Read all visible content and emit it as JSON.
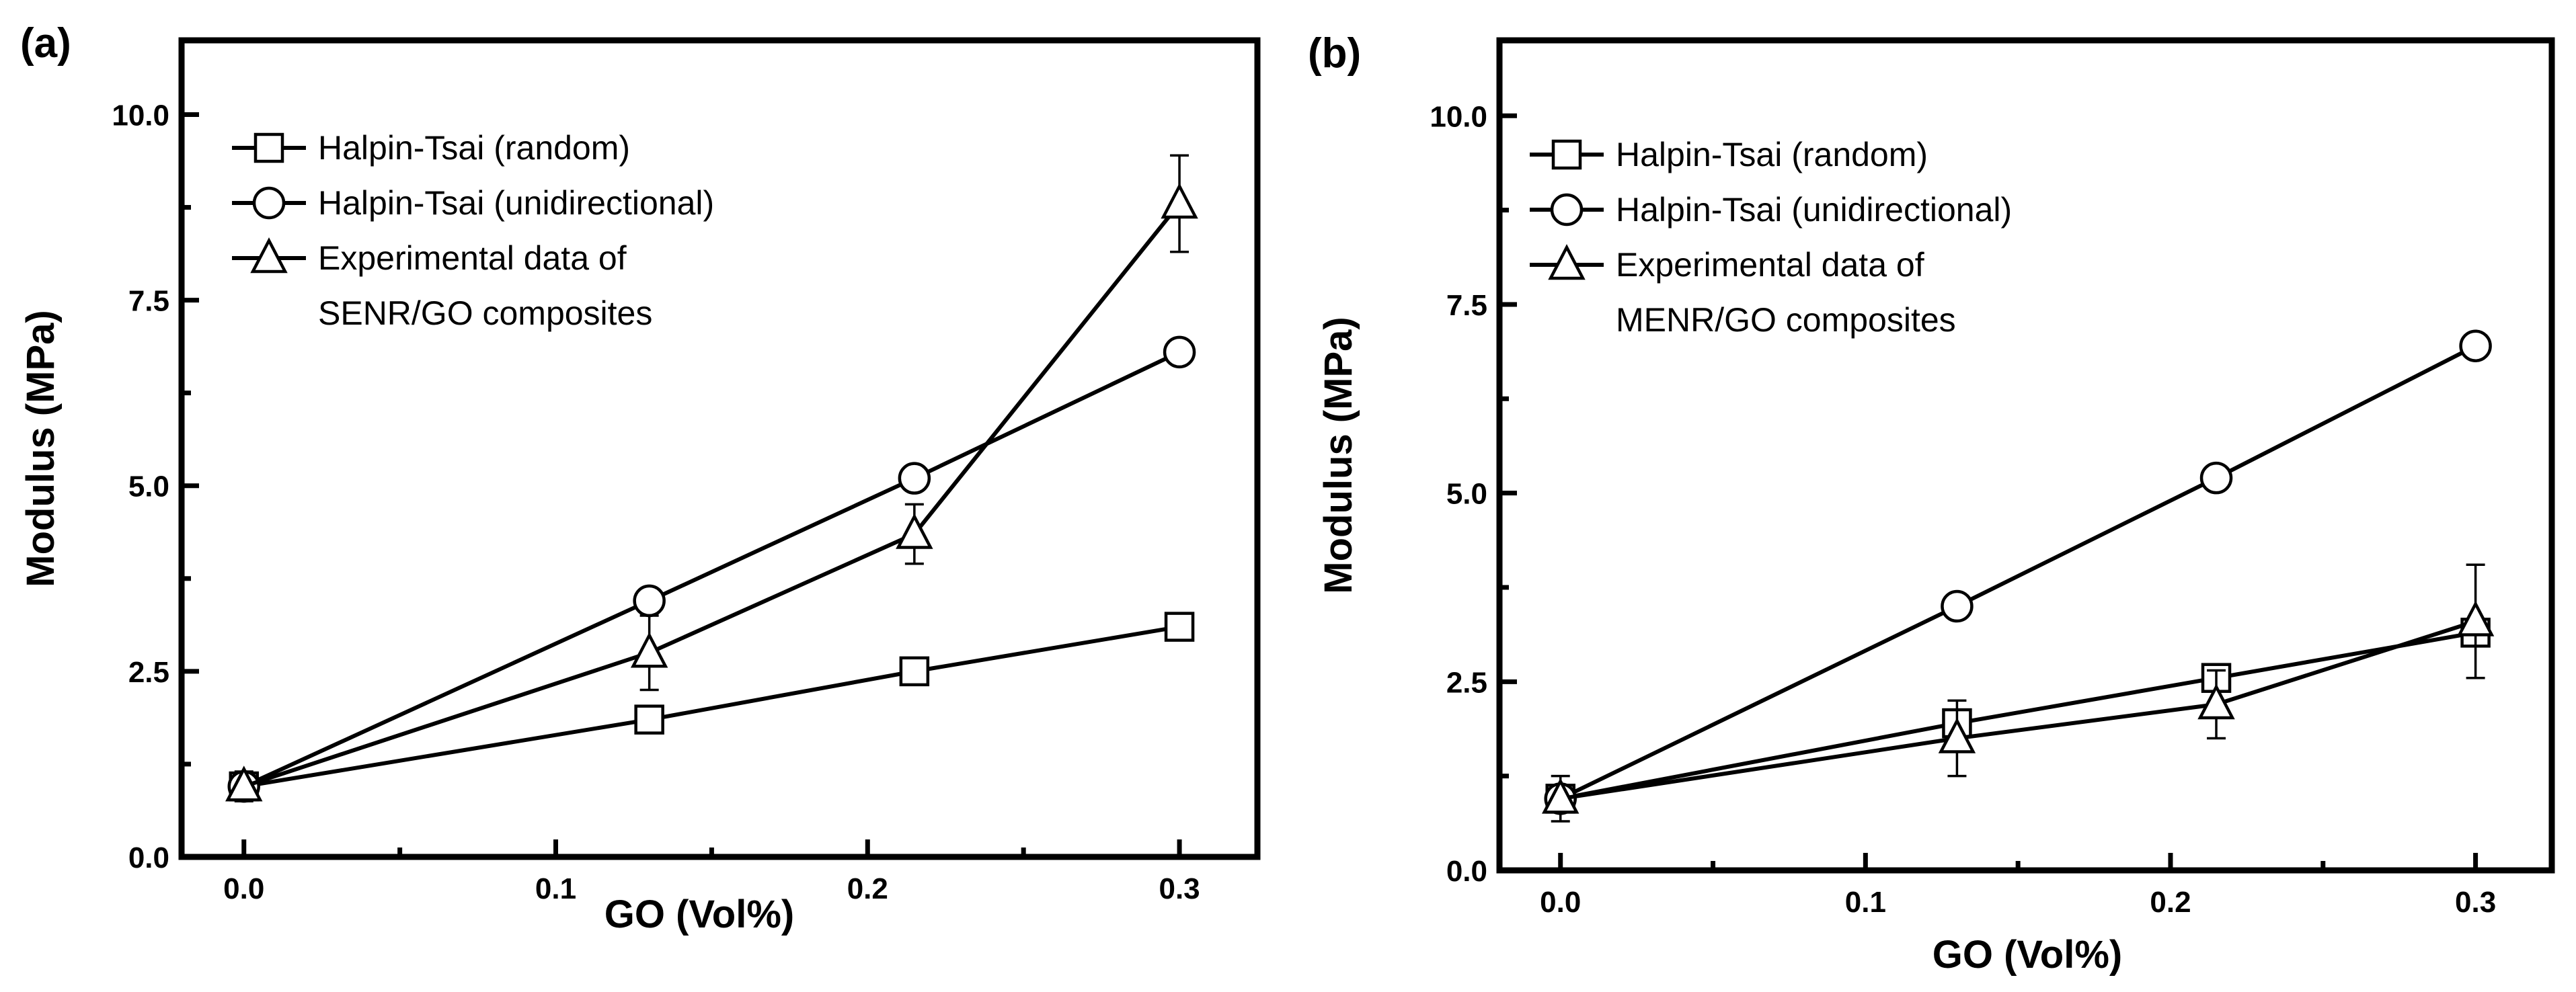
{
  "chart_data": [
    {
      "type": "line",
      "panel_label": "(a)",
      "xlabel": "GO (Vol%)",
      "ylabel": "Modulus (MPa)",
      "xlim": [
        -0.02,
        0.325
      ],
      "ylim": [
        0,
        11
      ],
      "xticks": [
        "0.0",
        "0.1",
        "0.2",
        "0.3"
      ],
      "xtick_values": [
        0,
        0.1,
        0.2,
        0.3
      ],
      "yticks": [
        "0.0",
        "2.5",
        "5.0",
        "7.5",
        "10.0"
      ],
      "ytick_values": [
        0,
        2.5,
        5,
        7.5,
        10
      ],
      "legend_position": "top-left",
      "series": [
        {
          "name": "Halpin-Tsai (random)",
          "marker": "square",
          "x": [
            0,
            0.13,
            0.215,
            0.3
          ],
          "y": [
            0.95,
            1.85,
            2.5,
            3.1
          ]
        },
        {
          "name": "Halpin-Tsai (unidirectional)",
          "marker": "circle",
          "x": [
            0,
            0.13,
            0.215,
            0.3
          ],
          "y": [
            0.95,
            3.45,
            5.1,
            6.8
          ]
        },
        {
          "name": "Experimental data of",
          "name_line2": "SENR/GO composites",
          "marker": "triangle",
          "x": [
            0,
            0.13,
            0.215,
            0.3
          ],
          "y": [
            0.95,
            2.75,
            4.35,
            8.8
          ],
          "error": [
            0.2,
            0.5,
            0.4,
            0.65
          ]
        }
      ]
    },
    {
      "type": "line",
      "panel_label": "(b)",
      "xlabel": "GO (Vol%)",
      "ylabel": "Modulus (MPa)",
      "xlim": [
        -0.02,
        0.325
      ],
      "ylim": [
        0,
        11
      ],
      "xticks": [
        "0.0",
        "0.1",
        "0.2",
        "0.3"
      ],
      "xtick_values": [
        0,
        0.1,
        0.2,
        0.3
      ],
      "yticks": [
        "0.0",
        "2.5",
        "5.0",
        "7.5",
        "10.0"
      ],
      "ytick_values": [
        0,
        2.5,
        5,
        7.5,
        10
      ],
      "legend_position": "top-left",
      "series": [
        {
          "name": "Halpin-Tsai (random)",
          "marker": "square",
          "x": [
            0,
            0.13,
            0.215,
            0.3
          ],
          "y": [
            0.95,
            1.95,
            2.55,
            3.15
          ]
        },
        {
          "name": "Halpin-Tsai (unidirectional)",
          "marker": "circle",
          "x": [
            0,
            0.13,
            0.215,
            0.3
          ],
          "y": [
            0.95,
            3.5,
            5.2,
            6.95
          ]
        },
        {
          "name": "Experimental data of",
          "name_line2": "MENR/GO composites",
          "marker": "triangle",
          "x": [
            0,
            0.13,
            0.215,
            0.3
          ],
          "y": [
            0.95,
            1.75,
            2.2,
            3.3
          ],
          "error": [
            0.3,
            0.5,
            0.45,
            0.75
          ]
        }
      ]
    }
  ]
}
